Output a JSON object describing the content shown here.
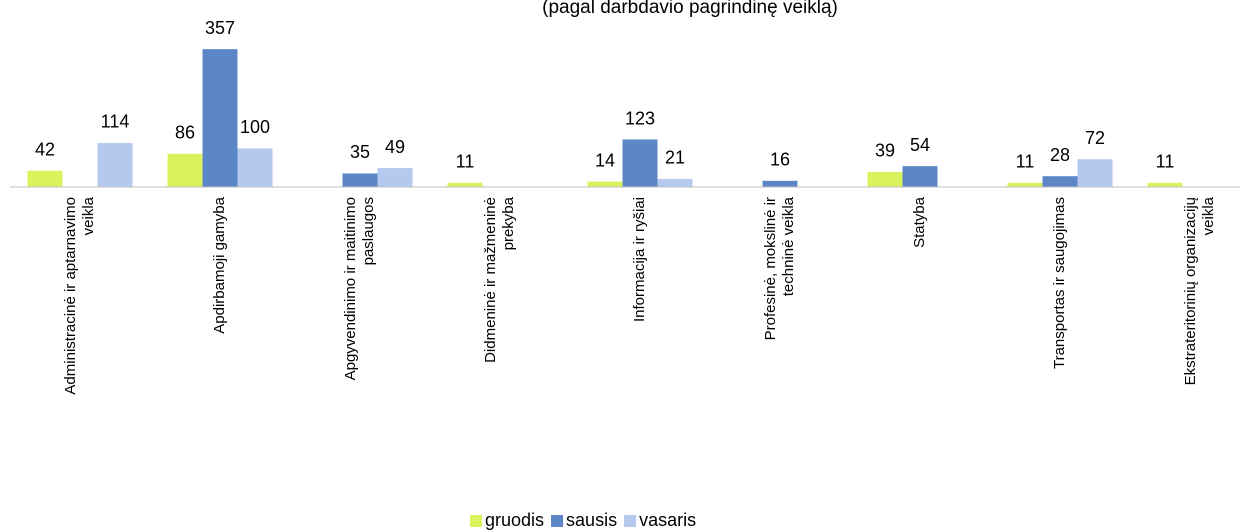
{
  "chart_data": {
    "type": "bar",
    "subtitle": "(pagal darbdavio pagrindinę veiklą)",
    "categories": [
      "Administracinė ir aptarnavimo\nveikla",
      "Apdirbamoji gamyba",
      "Apgyvendinimo ir maitinimo\npaslaugos",
      "Didmeninė ir mažmeninė\nprekyba",
      "Informacija ir ryšiai",
      "Profesinė, mokslinė ir\ntechninė veikla",
      "Statyba",
      "Transportas ir saugojimas",
      "Ekstrateritorinių organizacijų\nveikla"
    ],
    "series": [
      {
        "name": "gruodis",
        "color": "#dcf25c",
        "values": [
          42,
          86,
          null,
          11,
          14,
          null,
          39,
          11,
          11
        ]
      },
      {
        "name": "sausis",
        "color": "#5b87c6",
        "values": [
          null,
          357,
          35,
          null,
          123,
          16,
          54,
          28,
          null
        ]
      },
      {
        "name": "vasaris",
        "color": "#b5c9ef",
        "values": [
          114,
          100,
          49,
          null,
          21,
          null,
          null,
          72,
          null
        ]
      }
    ],
    "ylim": [
      0,
      360
    ],
    "legend": "bottom"
  }
}
